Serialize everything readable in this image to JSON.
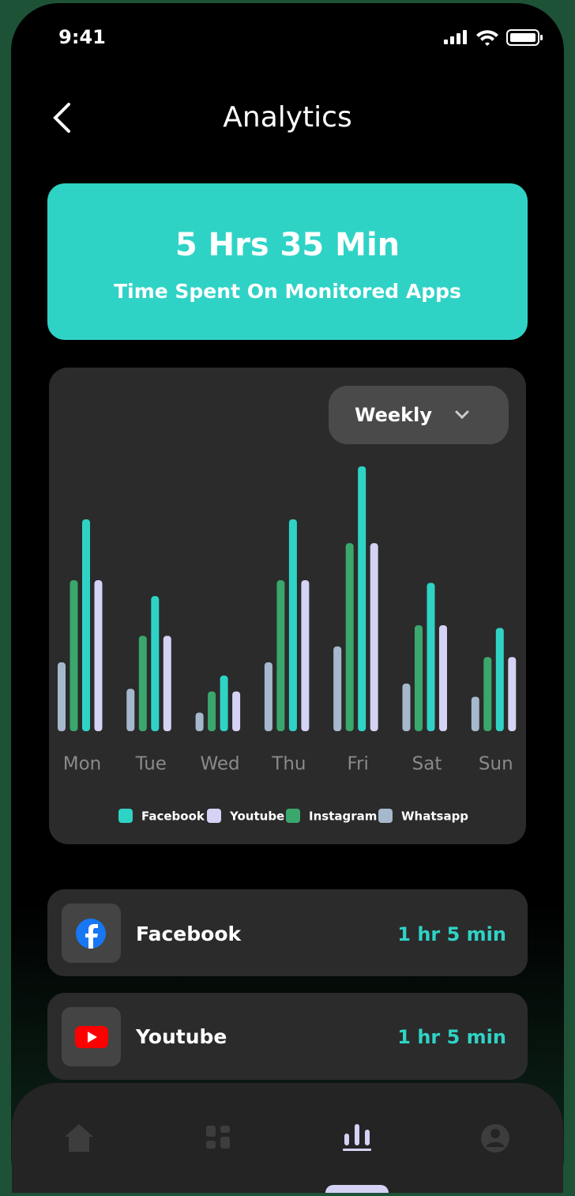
{
  "status_bar": {
    "time": "9:41"
  },
  "header": {
    "title": "Analytics"
  },
  "summary": {
    "value": "5 Hrs 35 Min",
    "label": "Time Spent On Monitored Apps"
  },
  "chart_data": {
    "type": "bar",
    "period": "Weekly",
    "categories": [
      "Mon",
      "Tue",
      "Wed",
      "Thu",
      "Fri",
      "Sat",
      "Sun"
    ],
    "series": [
      {
        "name": "Facebook",
        "color": "#2fd3c6",
        "values": [
          80,
          51,
          21,
          80,
          100,
          56,
          39
        ]
      },
      {
        "name": "Youtube",
        "color": "#d4d2f5",
        "values": [
          57,
          36,
          15,
          57,
          71,
          40,
          28
        ]
      },
      {
        "name": "Instagram",
        "color": "#3aa76d",
        "values": [
          57,
          36,
          15,
          57,
          71,
          40,
          28
        ]
      },
      {
        "name": "Whatsapp",
        "color": "#a6b8cc",
        "values": [
          26,
          16,
          7,
          26,
          32,
          18,
          13
        ]
      }
    ],
    "legend": true
  },
  "apps": [
    {
      "name": "Facebook",
      "time": "1 hr 5 min"
    },
    {
      "name": "Youtube",
      "time": "1 hr 5 min"
    }
  ]
}
